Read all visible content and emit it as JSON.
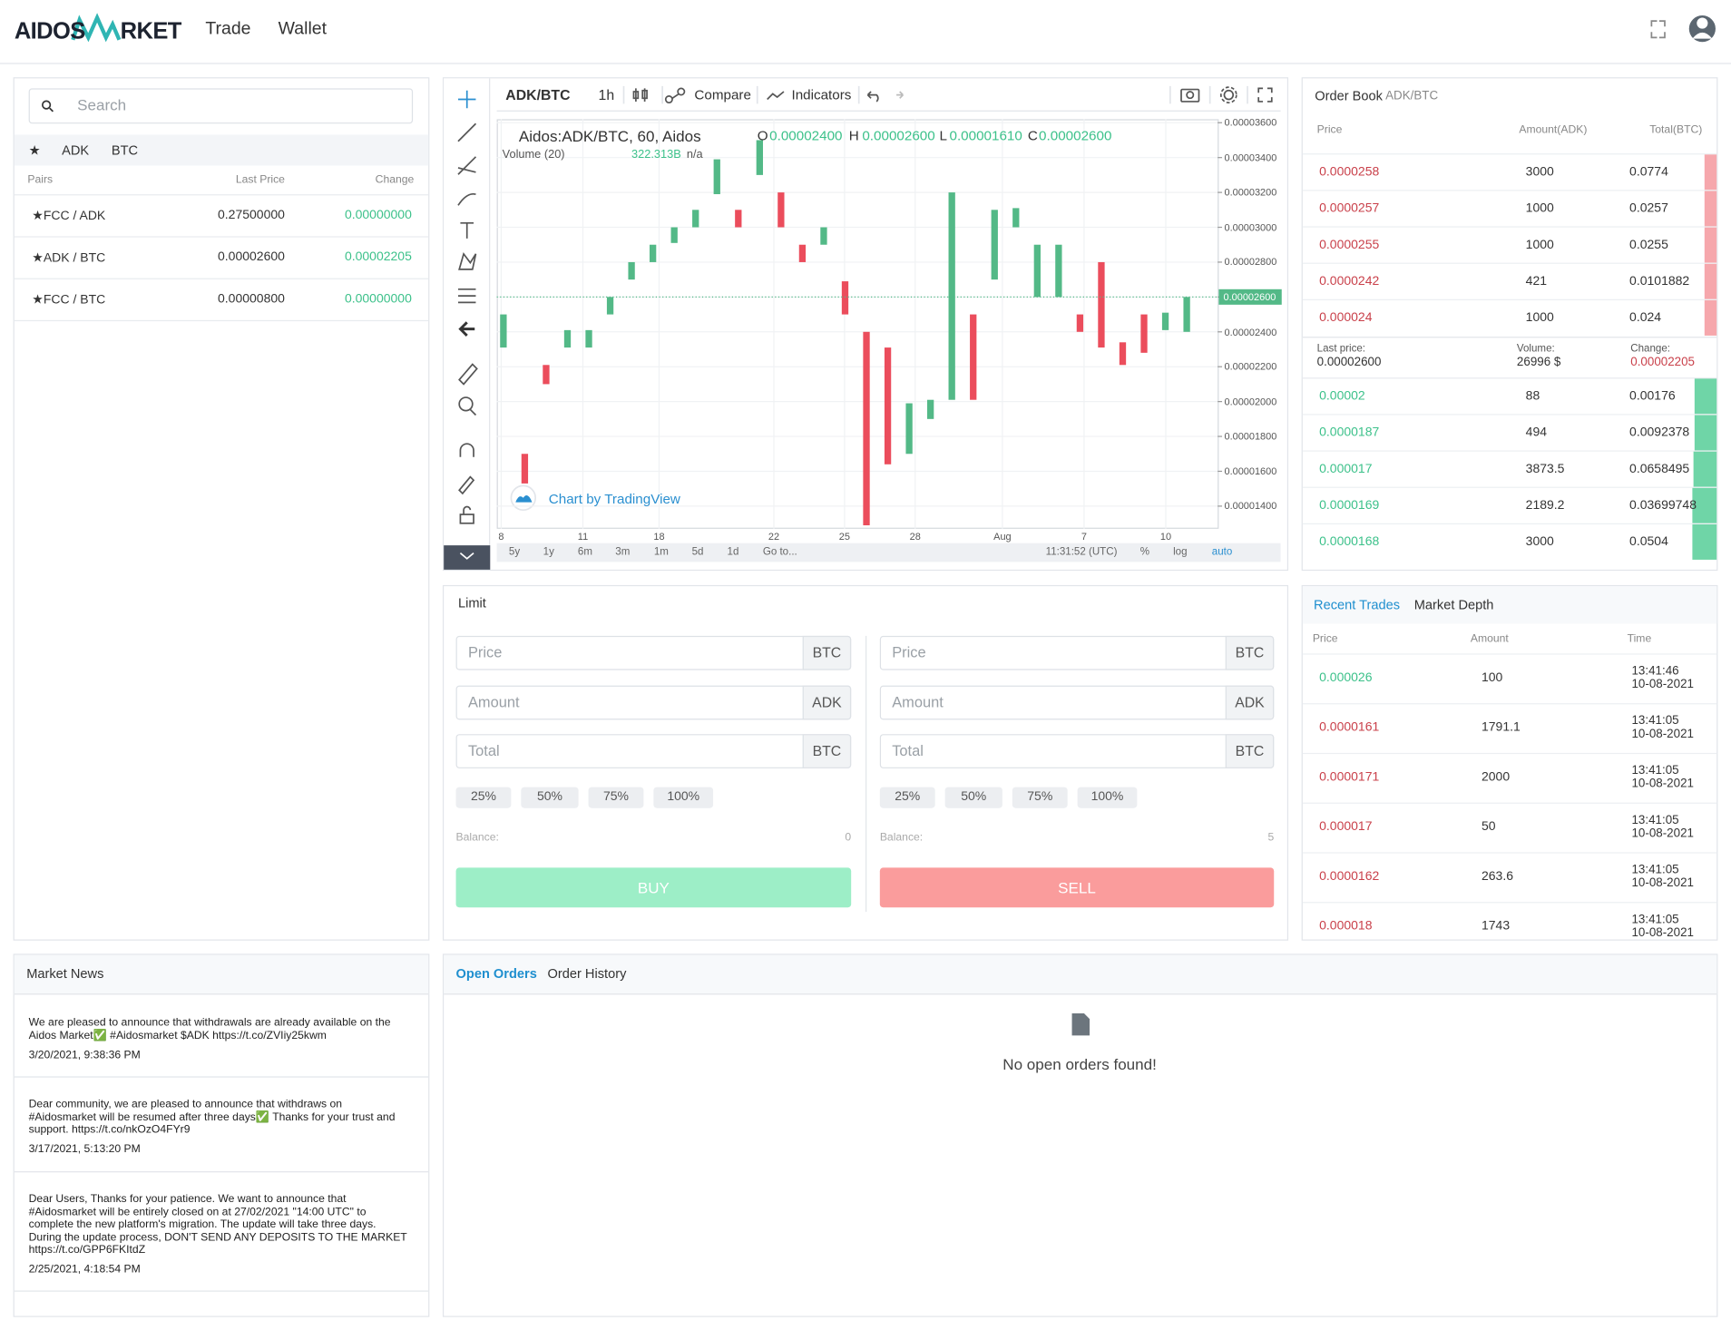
{
  "header": {
    "logo": [
      "AIDOS",
      "RKET"
    ],
    "nav": [
      "Trade",
      "Wallet"
    ]
  },
  "pairs": {
    "search": "Search",
    "tabs": [
      "★",
      "ADK",
      "BTC"
    ],
    "columns": [
      "Pairs",
      "Last Price",
      "Change"
    ],
    "rows": [
      [
        "★FCC / ADK",
        "0.27500000",
        "0.00000000"
      ],
      [
        "★ADK / BTC",
        "0.00002600",
        "0.00002205"
      ],
      [
        "★FCC / BTC",
        "0.00000800",
        "0.00000000"
      ]
    ]
  },
  "chart_toolbar": {
    "symbol": "ADK/BTC",
    "interval": "1h",
    "compare": "Compare",
    "indicators": "Indicators"
  },
  "price_chart": {
    "type": "candlestick",
    "legend": "Aidos:ADK/BTC, 60, Aidos",
    "ohlc": [
      [
        "O",
        "0.00002400"
      ],
      [
        "H",
        "0.00002600"
      ],
      [
        "L",
        "0.00001610"
      ],
      [
        "C",
        "0.00002600"
      ]
    ],
    "volume": [
      "Volume (20)",
      "322.313B",
      "n/a"
    ],
    "ylim": [
      1.27e-05,
      3.62e-05
    ],
    "yticks": [
      {
        "value": 3.6e-05,
        "label": "0.00003600"
      },
      {
        "value": 3.4e-05,
        "label": "0.00003400"
      },
      {
        "value": 3.2e-05,
        "label": "0.00003200"
      },
      {
        "value": 3e-05,
        "label": "0.00003000"
      },
      {
        "value": 2.8e-05,
        "label": "0.00002800"
      },
      {
        "value": 2.6e-05,
        "label": "0.00002600"
      },
      {
        "value": 2.4e-05,
        "label": "0.00002400"
      },
      {
        "value": 2.2e-05,
        "label": "0.00002200"
      },
      {
        "value": 2e-05,
        "label": "0.00002000"
      },
      {
        "value": 1.8e-05,
        "label": "0.00001800"
      },
      {
        "value": 1.6e-05,
        "label": "0.00001600"
      },
      {
        "value": 1.4e-05,
        "label": "0.00001400"
      }
    ],
    "xticks": [
      "8",
      "11",
      "18",
      "22",
      "25",
      "28",
      "Aug",
      "7",
      "10"
    ],
    "last_price": {
      "value": 2.6e-05,
      "label": "0.00002600"
    },
    "up_color": "#53b987",
    "down_color": "#eb4d5c",
    "candles": [
      {
        "open": 2.31e-05,
        "close": 2.5e-05
      },
      {
        "open": 1.7e-05,
        "close": 1.53e-05
      },
      {
        "open": 2.21e-05,
        "close": 2.1e-05
      },
      {
        "open": 2.31e-05,
        "close": 2.41e-05
      },
      {
        "open": 2.31e-05,
        "close": 2.41e-05
      },
      {
        "open": 2.5e-05,
        "close": 2.6e-05
      },
      {
        "open": 2.7e-05,
        "close": 2.8e-05
      },
      {
        "open": 2.8e-05,
        "close": 2.9e-05
      },
      {
        "open": 2.91e-05,
        "close": 3e-05
      },
      {
        "open": 3e-05,
        "close": 3.1e-05
      },
      {
        "open": 3.19e-05,
        "close": 3.39e-05
      },
      {
        "open": 3.1e-05,
        "close": 3e-05
      },
      {
        "open": 3.3e-05,
        "close": 3.5e-05
      },
      {
        "open": 3.2e-05,
        "close": 3e-05
      },
      {
        "open": 2.9e-05,
        "close": 2.8e-05
      },
      {
        "open": 2.9e-05,
        "close": 3e-05
      },
      {
        "open": 2.69e-05,
        "close": 2.5e-05
      },
      {
        "open": 2.4e-05,
        "close": 1.29e-05
      },
      {
        "open": 2.31e-05,
        "close": 1.64e-05
      },
      {
        "open": 1.7e-05,
        "close": 1.99e-05
      },
      {
        "open": 1.9e-05,
        "close": 2.01e-05
      },
      {
        "open": 2.01e-05,
        "close": 3.2e-05
      },
      {
        "open": 2.5e-05,
        "close": 2.01e-05
      },
      {
        "open": 2.7e-05,
        "close": 3.1e-05
      },
      {
        "open": 3e-05,
        "close": 3.11e-05
      },
      {
        "open": 2.6e-05,
        "close": 2.9e-05
      },
      {
        "open": 2.6e-05,
        "close": 2.9e-05
      },
      {
        "open": 2.5e-05,
        "close": 2.4e-05
      },
      {
        "open": 2.8e-05,
        "close": 2.31e-05
      },
      {
        "open": 2.34e-05,
        "close": 2.21e-05
      },
      {
        "open": 2.5e-05,
        "close": 2.28e-05
      },
      {
        "open": 2.41e-05,
        "close": 2.51e-05
      },
      {
        "open": 2.4e-05,
        "close": 2.6e-05
      }
    ],
    "watermark": "Chart by TradingView",
    "timeframes": [
      "5y",
      "1y",
      "6m",
      "3m",
      "1m",
      "5d",
      "1d"
    ],
    "goto": "Go to...",
    "clock": "11:31:52 (UTC)",
    "options": [
      "%",
      "log",
      "auto"
    ]
  },
  "order_book": {
    "title": "Order Book",
    "pair": "ADK/BTC",
    "columns": [
      "Price",
      "Amount(ADK)",
      "Total(BTC)"
    ],
    "asks": [
      [
        "0.0000258",
        "3000",
        "0.0774"
      ],
      [
        "0.0000257",
        "1000",
        "0.0257"
      ],
      [
        "0.0000255",
        "1000",
        "0.0255"
      ],
      [
        "0.0000242",
        "421",
        "0.0101882"
      ],
      [
        "0.000024",
        "1000",
        "0.024"
      ]
    ],
    "summary_labels": [
      "Last price:",
      "Volume:",
      "Change:"
    ],
    "summary_values": [
      "0.00002600",
      "26996 $",
      "0.00002205"
    ],
    "bids": [
      [
        "0.00002",
        "88",
        "0.00176"
      ],
      [
        "0.0000187",
        "494",
        "0.0092378"
      ],
      [
        "0.000017",
        "3873.5",
        "0.0658495"
      ],
      [
        "0.0000169",
        "2189.2",
        "0.03699748"
      ],
      [
        "0.0000168",
        "3000",
        "0.0504"
      ]
    ]
  },
  "limit": {
    "title": "Limit",
    "buy": {
      "fields": [
        [
          "Price",
          "BTC"
        ],
        [
          "Amount",
          "ADK"
        ],
        [
          "Total",
          "BTC"
        ]
      ],
      "percents": [
        "25%",
        "50%",
        "75%",
        "100%"
      ],
      "balance_label": "Balance:",
      "balance": "0",
      "button": "BUY",
      "color": "#9deec7"
    },
    "sell": {
      "fields": [
        [
          "Price",
          "BTC"
        ],
        [
          "Amount",
          "ADK"
        ],
        [
          "Total",
          "BTC"
        ]
      ],
      "percents": [
        "25%",
        "50%",
        "75%",
        "100%"
      ],
      "balance_label": "Balance:",
      "balance": "5",
      "button": "SELL",
      "color": "#fa9c9c"
    }
  },
  "trades": {
    "tabs": [
      "Recent Trades",
      "Market Depth"
    ],
    "columns": [
      "Price",
      "Amount",
      "Time"
    ],
    "rows": [
      [
        "0.000026",
        "100",
        "13:41:46",
        "10-08-2021"
      ],
      [
        "0.0000161",
        "1791.1",
        "13:41:05",
        "10-08-2021"
      ],
      [
        "0.0000171",
        "2000",
        "13:41:05",
        "10-08-2021"
      ],
      [
        "0.000017",
        "50",
        "13:41:05",
        "10-08-2021"
      ],
      [
        "0.0000162",
        "263.6",
        "13:41:05",
        "10-08-2021"
      ],
      [
        "0.000018",
        "1743",
        "13:41:05",
        "10-08-2021"
      ]
    ],
    "row_colors": [
      "#3cc18a",
      "#c9404a",
      "#c9404a",
      "#c9404a",
      "#c9404a",
      "#c9404a"
    ]
  },
  "news": {
    "title": "Market News",
    "items": [
      [
        "We are pleased to announce that withdrawals are already available on the Aidos Market✅ #Aidosmarket $ADK https://t.co/ZVIiy25kwm",
        "3/20/2021, 9:38:36 PM"
      ],
      [
        "Dear community, we are pleased to announce that withdraws on #Aidosmarket will be resumed after three days✅ Thanks for your trust and support. https://t.co/nkOzO4FYr9",
        "3/17/2021, 5:13:20 PM"
      ],
      [
        "Dear Users, Thanks for your patience. We want to announce that #Aidosmarket will be entirely closed on at 27/02/2021 \"14:00 UTC\" to complete the new platform's migration. The update will take three days. During the update process, DON'T SEND ANY DEPOSITS TO THE MARKET https://t.co/GPP6FKItdZ",
        "2/25/2021, 4:18:54 PM"
      ]
    ]
  },
  "orders": {
    "tabs": [
      "Open Orders",
      "Order History"
    ],
    "empty": "No open orders found!"
  }
}
